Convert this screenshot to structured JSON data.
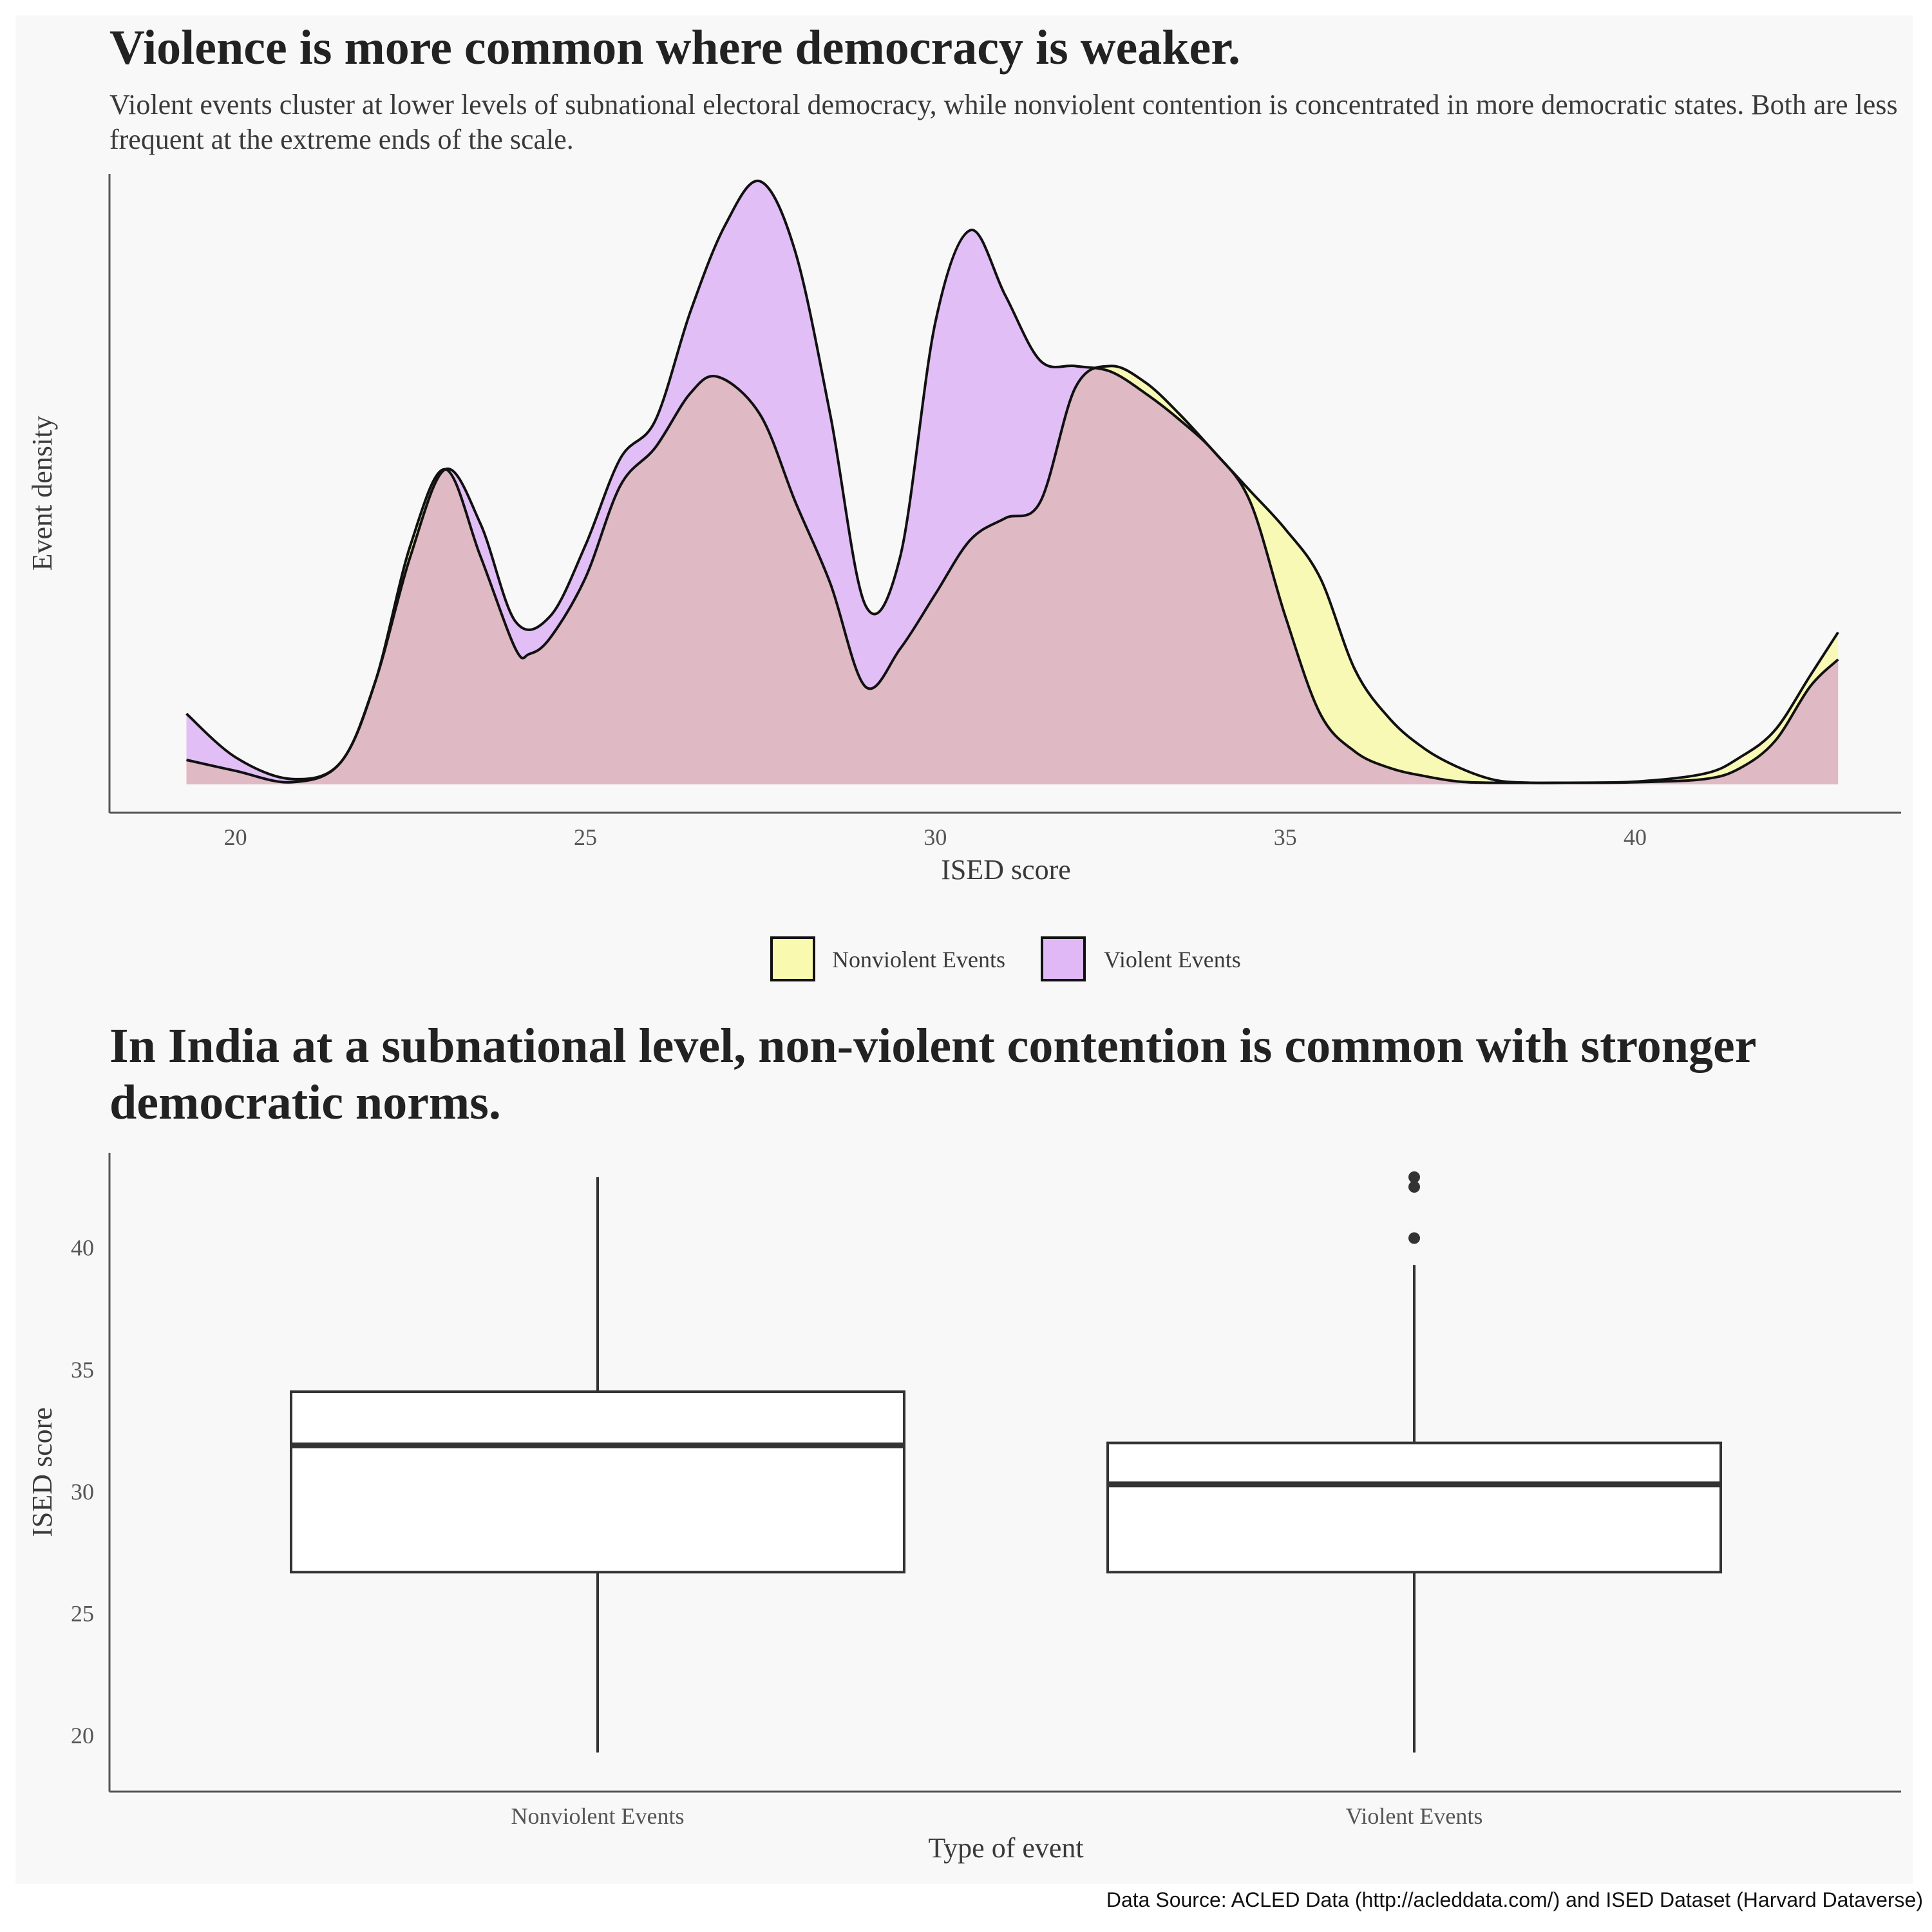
{
  "caption": "Data Source: ACLED Data (http://acleddata.com/) and ISED Dataset (Harvard Dataverse)",
  "colors": {
    "nonviolent": "#f9f9b0",
    "violent": "#dfb8f5",
    "overlap": "#dfb9c3",
    "background": "#f8f8f8"
  },
  "chart_data": [
    {
      "type": "area",
      "title": "Violence is more common where democracy is weaker.",
      "subtitle": "Violent events cluster at lower levels of subnational electoral democracy, while nonviolent contention is concentrated in more democratic states. Both are less frequent at the extreme ends of the scale.",
      "xlabel": "ISED score",
      "ylabel": "Event density",
      "xlim": [
        18.2,
        43.8
      ],
      "ylim": [
        0,
        1.1
      ],
      "x_ticks": [
        "20",
        "25",
        "30",
        "35",
        "40"
      ],
      "grid": false,
      "legend_position": "bottom",
      "series": [
        {
          "name": "Nonviolent Events",
          "color": "#f9f9b0",
          "x": [
            19.3,
            20.0,
            20.8,
            21.5,
            22.0,
            22.5,
            23.0,
            23.5,
            24.0,
            24.2,
            24.5,
            25.0,
            25.5,
            26.0,
            26.5,
            26.9,
            27.5,
            28.0,
            28.5,
            29.0,
            29.5,
            30.0,
            30.5,
            31.0,
            31.5,
            32.0,
            32.5,
            33.0,
            33.5,
            34.0,
            34.5,
            35.0,
            35.5,
            36.0,
            36.5,
            37.0,
            37.5,
            38.0,
            38.5,
            39.0,
            40.0,
            41.0,
            41.5,
            42.0,
            42.5,
            42.9
          ],
          "values": [
            0.045,
            0.025,
            0.004,
            0.04,
            0.19,
            0.44,
            0.58,
            0.42,
            0.25,
            0.24,
            0.27,
            0.38,
            0.55,
            0.62,
            0.72,
            0.75,
            0.68,
            0.52,
            0.37,
            0.18,
            0.25,
            0.35,
            0.45,
            0.49,
            0.52,
            0.73,
            0.77,
            0.74,
            0.68,
            0.61,
            0.54,
            0.47,
            0.38,
            0.21,
            0.12,
            0.065,
            0.03,
            0.008,
            0.003,
            0.003,
            0.005,
            0.02,
            0.05,
            0.1,
            0.2,
            0.28
          ]
        },
        {
          "name": "Violent Events",
          "color": "#dfb8f5",
          "x": [
            19.3,
            20.0,
            20.8,
            21.5,
            22.0,
            22.5,
            23.0,
            23.5,
            24.0,
            24.5,
            25.0,
            25.5,
            26.0,
            26.5,
            27.0,
            27.5,
            28.0,
            28.5,
            29.0,
            29.5,
            30.0,
            30.5,
            31.0,
            31.5,
            32.0,
            32.5,
            33.0,
            33.5,
            34.0,
            34.5,
            35.0,
            35.5,
            36.0,
            36.5,
            37.0,
            37.5,
            38.0,
            39.0,
            40.0,
            41.0,
            41.5,
            42.0,
            42.5,
            42.9
          ],
          "values": [
            0.13,
            0.05,
            0.01,
            0.04,
            0.19,
            0.42,
            0.58,
            0.48,
            0.3,
            0.31,
            0.44,
            0.6,
            0.67,
            0.87,
            1.03,
            1.11,
            0.98,
            0.68,
            0.33,
            0.42,
            0.85,
            1.02,
            0.9,
            0.78,
            0.77,
            0.76,
            0.72,
            0.67,
            0.61,
            0.52,
            0.31,
            0.13,
            0.06,
            0.03,
            0.015,
            0.005,
            0.003,
            0.003,
            0.004,
            0.01,
            0.03,
            0.08,
            0.18,
            0.23
          ]
        }
      ]
    },
    {
      "type": "box",
      "title": "In India at a subnational level, non-violent contention is common with stronger democratic norms.",
      "xlabel": "Type of event",
      "ylabel": "ISED score",
      "ylim": [
        17.7,
        43.9
      ],
      "y_ticks": [
        20,
        25,
        30,
        35,
        40
      ],
      "categories": [
        "Nonviolent Events",
        "Violent Events"
      ],
      "boxes": [
        {
          "name": "Nonviolent Events",
          "whisker_low": 19.3,
          "q1": 26.7,
          "median": 31.9,
          "q3": 34.1,
          "whisker_high": 42.9,
          "outliers": []
        },
        {
          "name": "Violent Events",
          "whisker_low": 19.3,
          "q1": 26.7,
          "median": 30.3,
          "q3": 32.0,
          "whisker_high": 39.3,
          "outliers": [
            40.4,
            42.5,
            42.9
          ]
        }
      ]
    }
  ]
}
